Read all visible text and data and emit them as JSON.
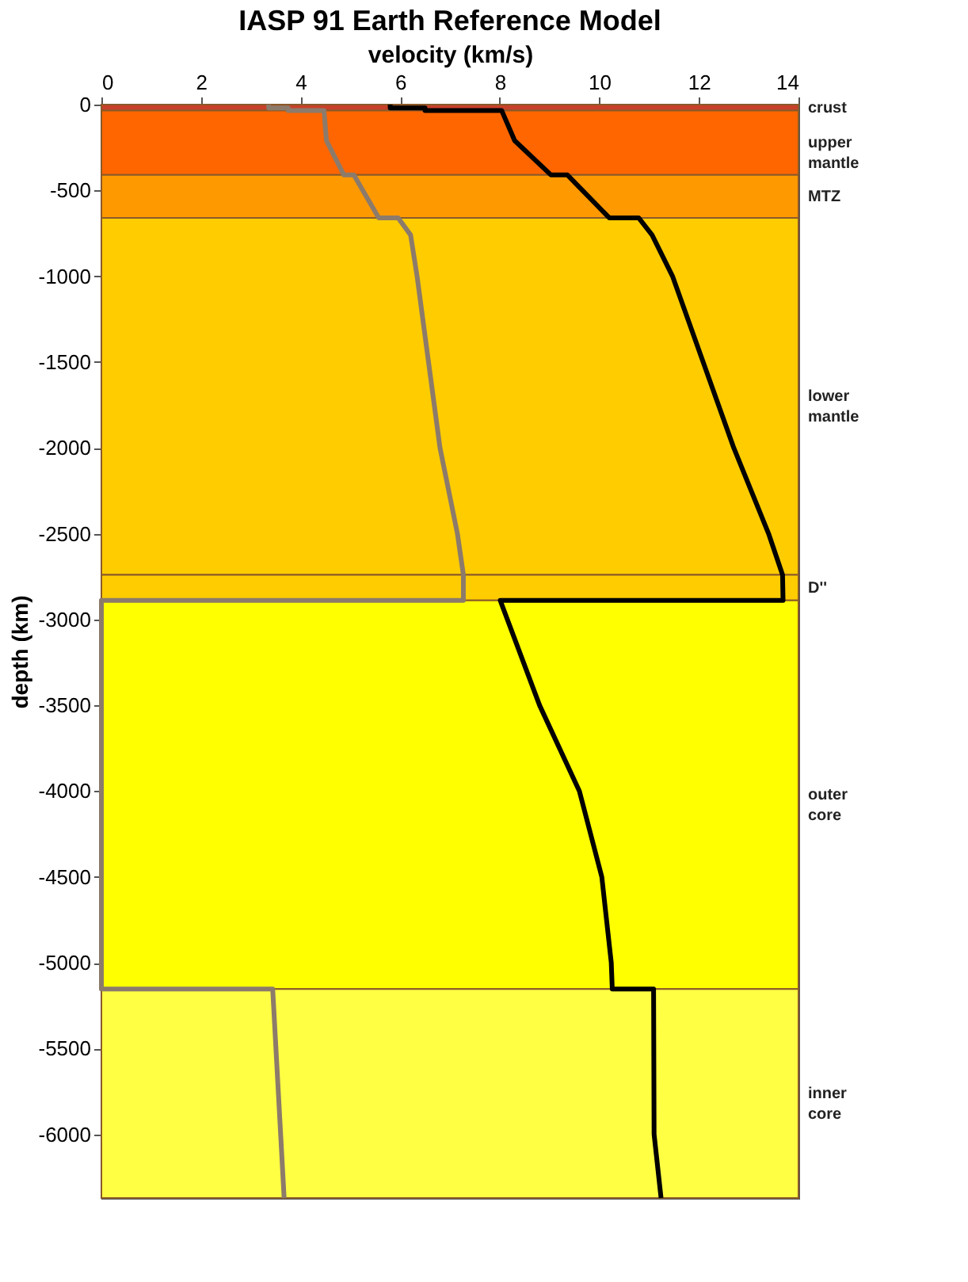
{
  "chart_data": {
    "type": "line",
    "title": "IASP 91 Earth Reference Model",
    "xlabel": "velocity (km/s)",
    "ylabel": "depth (km)",
    "xlim": [
      0,
      14
    ],
    "xticks": [
      0,
      2,
      4,
      6,
      8,
      10,
      12,
      14
    ],
    "ylim": [
      -6371,
      0
    ],
    "yticks": [
      0,
      -500,
      -1000,
      -1500,
      -2000,
      -2500,
      -3000,
      -3500,
      -4000,
      -4500,
      -5000,
      -5500,
      -6000
    ],
    "grid": false,
    "marker": "none",
    "line_style": "solid",
    "series": [
      {
        "color": "#000000",
        "x": [
          5.8,
          5.8,
          6.5,
          6.5,
          8.04,
          8.3,
          9.03,
          9.36,
          10.2,
          10.79,
          11.06,
          11.47,
          12.7,
          13.4,
          13.68,
          13.69,
          8.01,
          8.8,
          9.6,
          10.05,
          10.24,
          10.26,
          11.09,
          11.1,
          11.24
        ],
        "values": [
          0,
          -20,
          -20,
          -35,
          -35,
          -210,
          -410,
          -410,
          -660,
          -660,
          -760,
          -1000,
          -2000,
          -2500,
          -2740,
          -2889,
          -2889,
          -3500,
          -4000,
          -4500,
          -5000,
          -5153,
          -5153,
          -6000,
          -6371
        ]
      },
      {
        "color": "#8c7b6b",
        "x": [
          3.36,
          3.36,
          3.75,
          3.75,
          4.47,
          4.52,
          4.87,
          5.07,
          5.57,
          5.96,
          6.21,
          6.34,
          6.8,
          7.15,
          7.27,
          7.27,
          0,
          0,
          3.44,
          3.67
        ],
        "values": [
          0,
          -20,
          -20,
          -35,
          -35,
          -210,
          -410,
          -410,
          -660,
          -660,
          -760,
          -1000,
          -2000,
          -2500,
          -2740,
          -2889,
          -2889,
          -5153,
          -5153,
          -6371
        ]
      }
    ],
    "bands": [
      {
        "axis": "y",
        "from": 0,
        "to": -35,
        "label": "crust",
        "color": "#c8402a"
      },
      {
        "axis": "y",
        "from": -35,
        "to": -410,
        "label": "upper mantle",
        "color": "#ff6600"
      },
      {
        "axis": "y",
        "from": -410,
        "to": -660,
        "label": "MTZ",
        "color": "#ff9900"
      },
      {
        "axis": "y",
        "from": -660,
        "to": -2740,
        "label": "lower mantle",
        "color": "#ffcc00"
      },
      {
        "axis": "y",
        "from": -2740,
        "to": -2889,
        "label": "D''",
        "color": "#ffcc00"
      },
      {
        "axis": "y",
        "from": -2889,
        "to": -5153,
        "label": "outer core",
        "color": "#ffff00"
      },
      {
        "axis": "y",
        "from": -5153,
        "to": -6371,
        "label": "inner core",
        "color": "#ffff44"
      }
    ]
  }
}
